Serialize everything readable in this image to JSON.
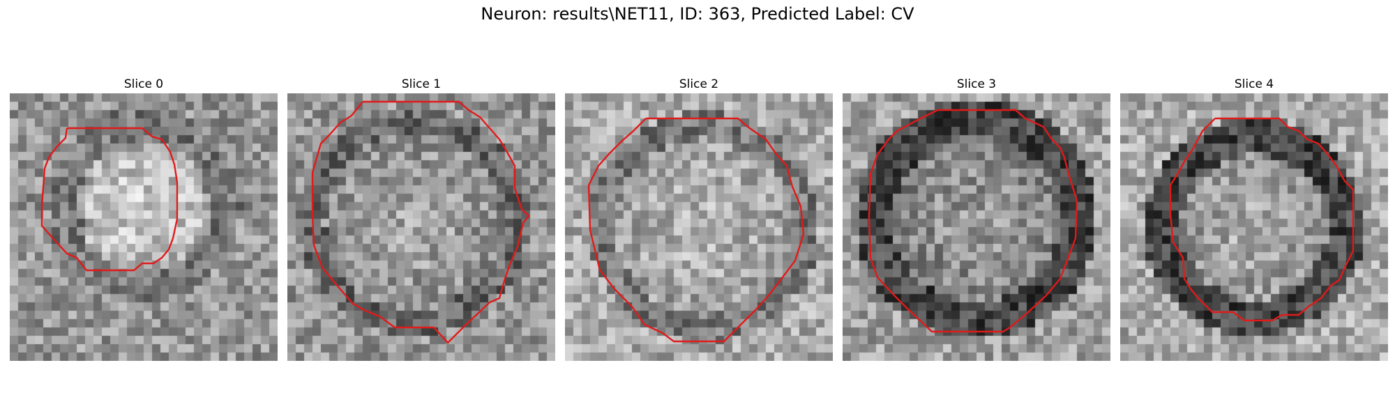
{
  "figure": {
    "title": "Neuron: results\\NET11, ID: 363, Predicted Label: CV",
    "contour_color": "#e11a1a"
  },
  "panels": [
    {
      "label": "Slice 0"
    },
    {
      "label": "Slice 1"
    },
    {
      "label": "Slice 2"
    },
    {
      "label": "Slice 3"
    },
    {
      "label": "Slice 4"
    }
  ]
}
